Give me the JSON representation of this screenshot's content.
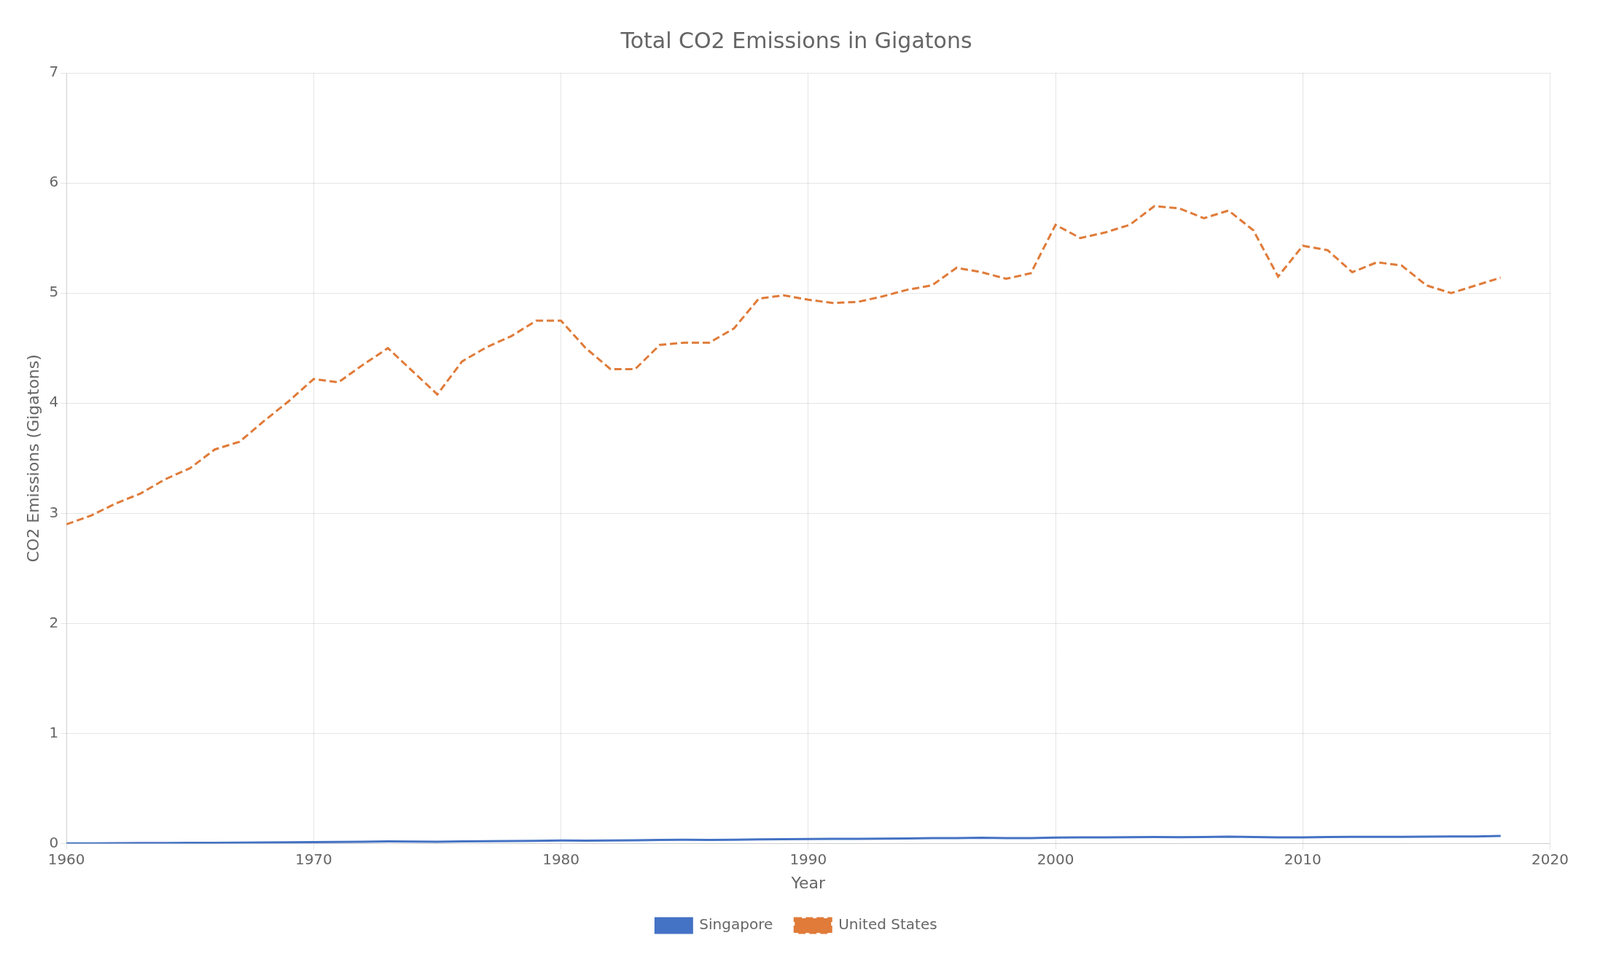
{
  "chart_data": {
    "type": "line",
    "title": "Total CO2 Emissions in Gigatons",
    "xlabel": "Year",
    "ylabel": "CO2 Emissions (Gigatons)",
    "x": [
      1960,
      1961,
      1962,
      1963,
      1964,
      1965,
      1966,
      1967,
      1968,
      1969,
      1970,
      1971,
      1972,
      1973,
      1974,
      1975,
      1976,
      1977,
      1978,
      1979,
      1980,
      1981,
      1982,
      1983,
      1984,
      1985,
      1986,
      1987,
      1988,
      1989,
      1990,
      1991,
      1992,
      1993,
      1994,
      1995,
      1996,
      1997,
      1998,
      1999,
      2000,
      2001,
      2002,
      2003,
      2004,
      2005,
      2006,
      2007,
      2008,
      2009,
      2010,
      2011,
      2012,
      2013,
      2014,
      2015,
      2016,
      2017,
      2018
    ],
    "series": [
      {
        "name": "Singapore",
        "color": "#4472C4",
        "line_style": "solid",
        "values": [
          0.003,
          0.003,
          0.004,
          0.005,
          0.006,
          0.007,
          0.008,
          0.009,
          0.01,
          0.012,
          0.014,
          0.015,
          0.017,
          0.02,
          0.019,
          0.018,
          0.02,
          0.022,
          0.024,
          0.026,
          0.028,
          0.027,
          0.028,
          0.03,
          0.033,
          0.035,
          0.034,
          0.036,
          0.039,
          0.04,
          0.042,
          0.043,
          0.043,
          0.045,
          0.047,
          0.05,
          0.05,
          0.053,
          0.05,
          0.05,
          0.055,
          0.057,
          0.057,
          0.058,
          0.06,
          0.059,
          0.06,
          0.063,
          0.06,
          0.057,
          0.057,
          0.06,
          0.062,
          0.062,
          0.062,
          0.064,
          0.065,
          0.065,
          0.07
        ]
      },
      {
        "name": "United States",
        "color": "#E07B39",
        "line_style": "dashed",
        "values": [
          2.9,
          2.98,
          3.09,
          3.18,
          3.31,
          3.41,
          3.58,
          3.65,
          3.84,
          4.02,
          4.22,
          4.19,
          4.35,
          4.5,
          4.29,
          4.08,
          4.38,
          4.51,
          4.61,
          4.75,
          4.75,
          4.5,
          4.31,
          4.31,
          4.53,
          4.55,
          4.55,
          4.68,
          4.95,
          4.98,
          4.94,
          4.91,
          4.92,
          4.97,
          5.03,
          5.07,
          5.23,
          5.19,
          5.13,
          5.18,
          5.62,
          5.5,
          5.55,
          5.62,
          5.79,
          5.77,
          5.68,
          5.75,
          5.57,
          5.15,
          5.43,
          5.39,
          5.19,
          5.28,
          5.25,
          5.07,
          5.0,
          5.07,
          5.14
        ]
      }
    ],
    "xlim": [
      1960,
      2020
    ],
    "xticks": [
      1960,
      1970,
      1980,
      1990,
      2000,
      2010,
      2020
    ],
    "ylim": [
      0,
      7
    ],
    "yticks": [
      0,
      1,
      2,
      3,
      4,
      5,
      6,
      7
    ],
    "grid": true,
    "legend": "bottom"
  }
}
